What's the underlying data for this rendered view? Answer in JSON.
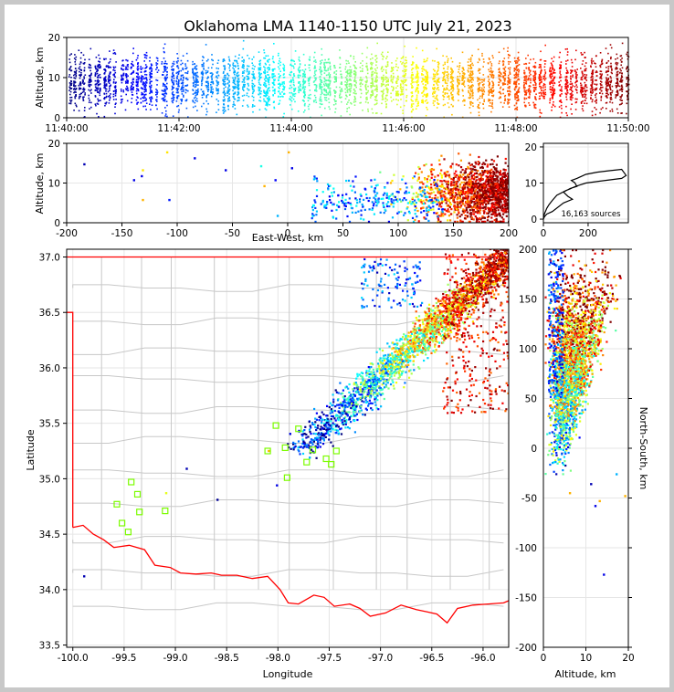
{
  "chart_data": [
    {
      "id": "time_altitude",
      "type": "scatter",
      "title": "Oklahoma LMA 1140-1150 UTC July 21, 2023",
      "ylabel": "Altitude, km",
      "xlim": [
        "11:40:00",
        "11:50:00"
      ],
      "ylim": [
        0,
        20
      ],
      "xticks": [
        "11:40:00",
        "11:42:00",
        "11:44:00",
        "11:46:00",
        "11:48:00",
        "11:50:00"
      ],
      "yticks": [
        0,
        10,
        20
      ],
      "color_by": "time",
      "colormap": "jet"
    },
    {
      "id": "ew_altitude",
      "type": "scatter",
      "xlabel": "East-West, km",
      "ylabel": "Altitude, km",
      "xlim": [
        -200,
        200
      ],
      "ylim": [
        0,
        20
      ],
      "xticks": [
        -200,
        -150,
        -100,
        -50,
        0,
        50,
        100,
        150,
        200
      ],
      "yticks": [
        0,
        10,
        20
      ]
    },
    {
      "id": "altitude_histogram",
      "type": "line",
      "xlim": [
        0,
        380
      ],
      "ylim": [
        -1,
        21
      ],
      "xticks": [
        0,
        200
      ],
      "yticks": [
        0,
        10,
        20
      ],
      "annotation": "16,163 sources",
      "x": [
        0,
        5,
        15,
        40,
        90,
        130,
        110,
        90,
        120,
        150,
        140,
        125,
        150,
        190,
        240,
        290,
        350,
        370,
        350,
        250,
        190,
        140,
        120,
        100,
        60,
        40,
        25,
        15,
        5,
        0
      ],
      "y": [
        0,
        0.7,
        1.4,
        2.1,
        4.5,
        5.5,
        6.3,
        7.5,
        8.5,
        9.1,
        10.1,
        10.7,
        11.3,
        12.4,
        13.0,
        13.4,
        13.8,
        12.1,
        11.3,
        10.5,
        10.0,
        9.0,
        8.4,
        7.9,
        6.6,
        5.2,
        4.0,
        3.0,
        1.5,
        0.5
      ]
    },
    {
      "id": "plan_view",
      "type": "scatter",
      "xlabel": "Longitude",
      "ylabel": "Latitude",
      "xlim": [
        -100.06,
        -95.75
      ],
      "ylim": [
        33.48,
        37.07
      ],
      "xticks": [
        "-100.0",
        "-99.5",
        "-99.0",
        "-98.5",
        "-98.0",
        "-97.5",
        "-97.0",
        "-96.5",
        "-96.0"
      ],
      "yticks": [
        "33.5",
        "34.0",
        "34.5",
        "35.0",
        "35.5",
        "36.0",
        "36.5",
        "37.0"
      ],
      "stations": [
        [
          -99.43,
          34.97
        ],
        [
          -99.37,
          34.86
        ],
        [
          -99.57,
          34.77
        ],
        [
          -99.35,
          34.7
        ],
        [
          -99.1,
          34.71
        ],
        [
          -99.52,
          34.6
        ],
        [
          -99.46,
          34.52
        ],
        [
          -97.93,
          35.28
        ],
        [
          -97.8,
          35.45
        ],
        [
          -97.91,
          35.01
        ],
        [
          -98.02,
          35.48
        ],
        [
          -98.1,
          35.25
        ],
        [
          -97.66,
          35.26
        ],
        [
          -97.72,
          35.15
        ],
        [
          -97.53,
          35.18
        ],
        [
          -97.43,
          35.25
        ],
        [
          -97.48,
          35.13
        ]
      ]
    },
    {
      "id": "altitude_ns",
      "type": "scatter",
      "xlabel": "Altitude, km",
      "ylabel": "North-South, km",
      "xlim": [
        0,
        20
      ],
      "ylim": [
        -200,
        200
      ],
      "xticks": [
        0,
        10,
        20
      ],
      "yticks": [
        -200,
        -150,
        -100,
        -50,
        0,
        50,
        100,
        150,
        200
      ]
    }
  ],
  "colors": {
    "border": "#ff0000",
    "counties": "#c8c8c8",
    "stations": "#7cfc00",
    "grid": "#e6e6e6",
    "frame": "#c8c8c8"
  }
}
